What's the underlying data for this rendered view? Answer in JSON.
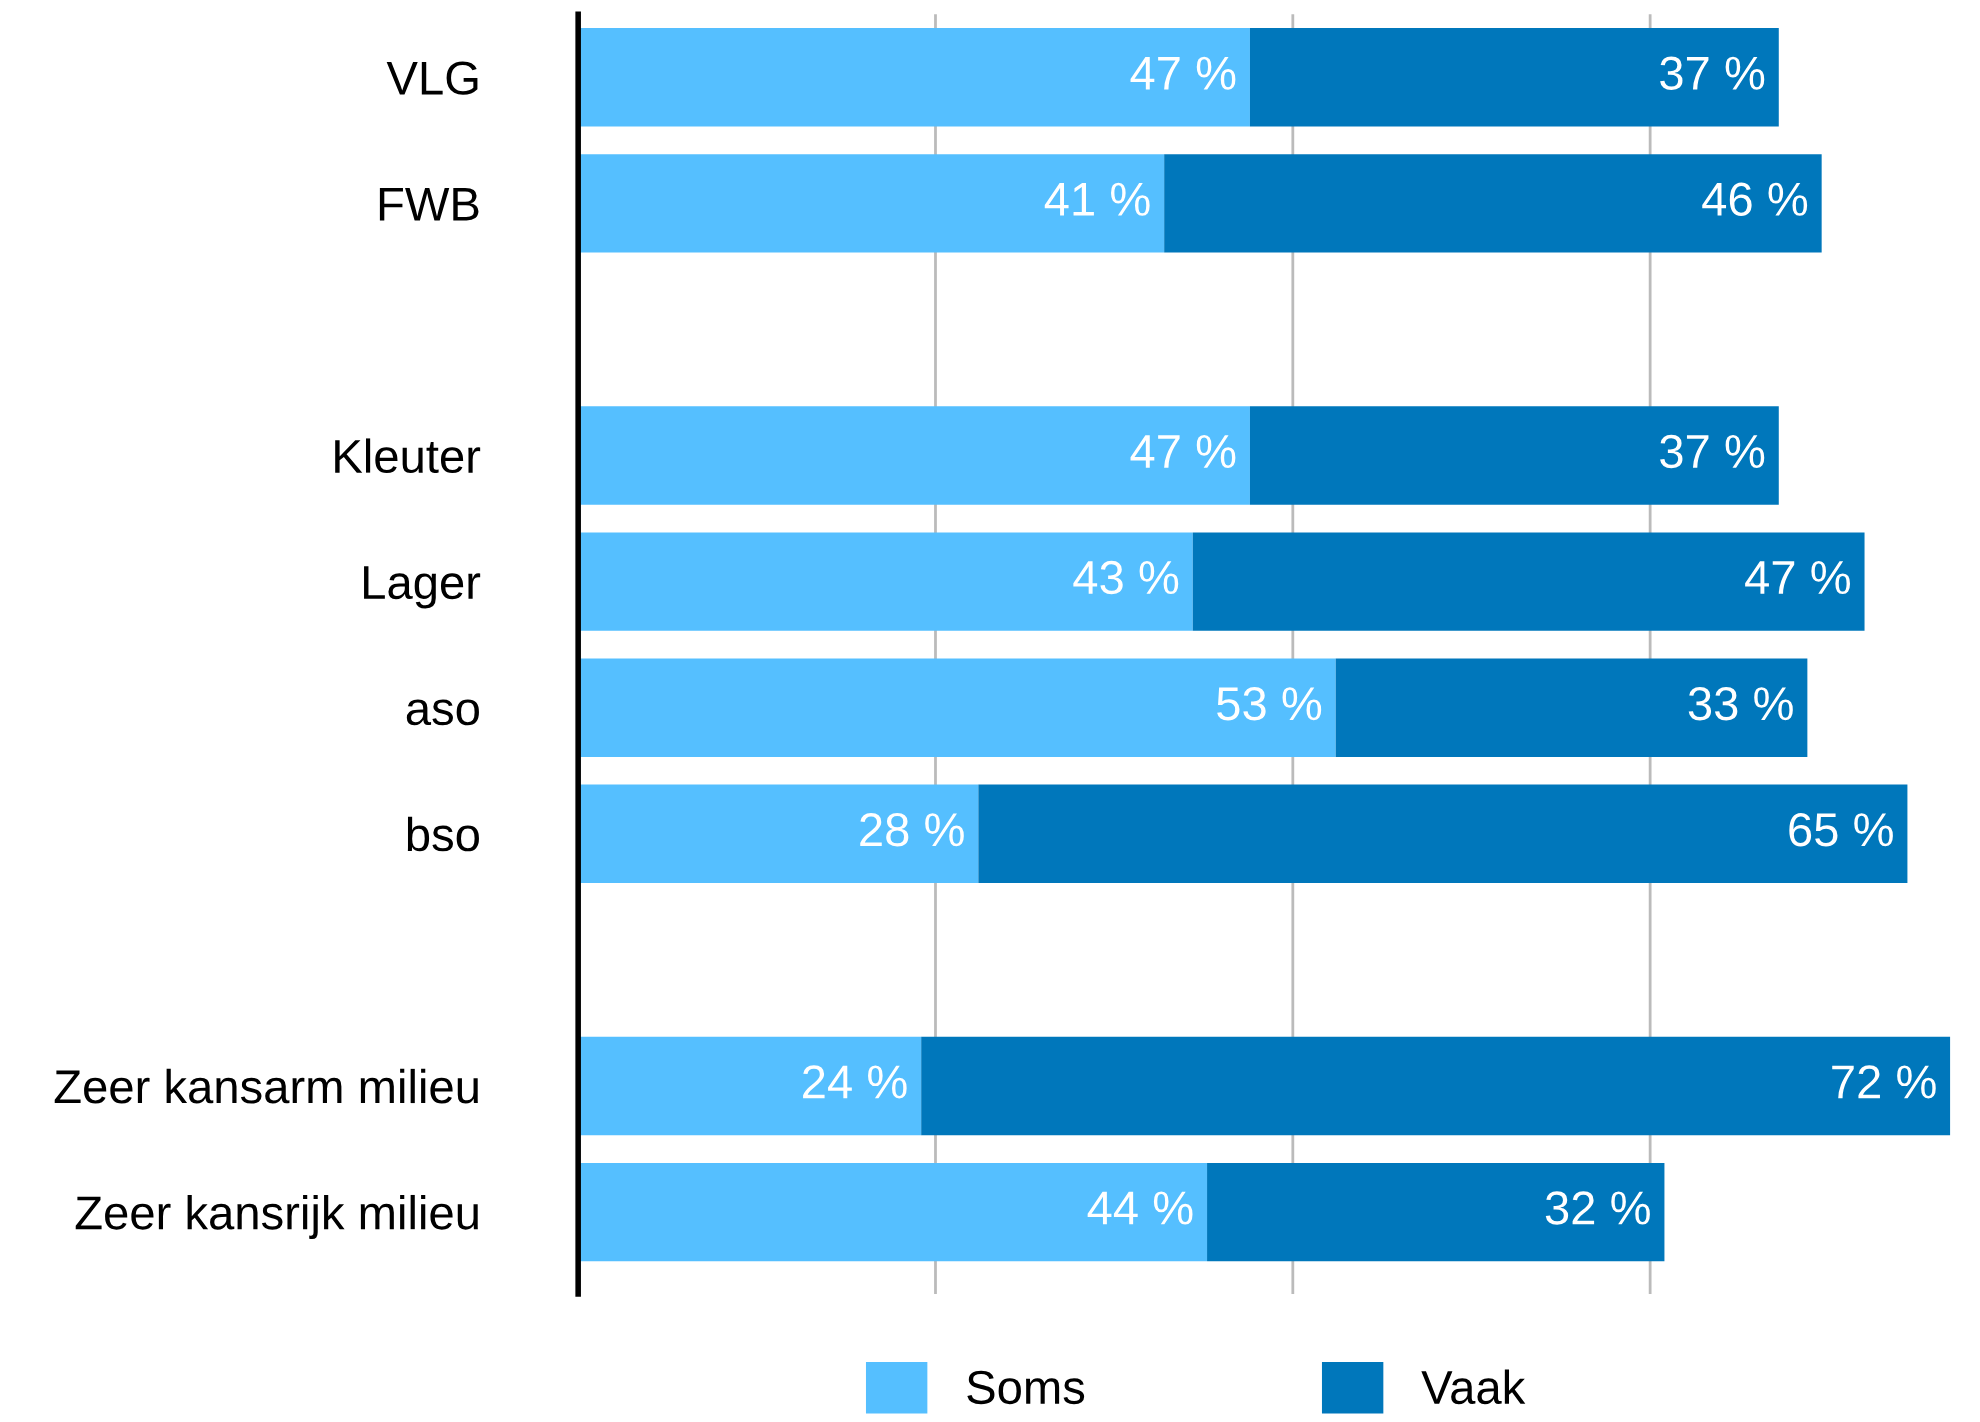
{
  "chart_data": {
    "type": "bar",
    "orientation": "horizontal",
    "stacked": true,
    "categories": [
      "VLG",
      "FWB",
      null,
      "Kleuter",
      "Lager",
      "aso",
      "bso",
      null,
      "Zeer kansarm milieu",
      "Zeer kansrijk milieu"
    ],
    "series": [
      {
        "name": "Soms",
        "color": "#55bfff",
        "values": [
          47,
          41,
          null,
          47,
          43,
          53,
          28,
          null,
          24,
          44
        ],
        "value_labels": [
          "47 %",
          "41 %",
          null,
          "47 %",
          "43 %",
          "53 %",
          "28 %",
          null,
          "24 %",
          "44 %"
        ]
      },
      {
        "name": "Vaak",
        "color": "#0077bb",
        "values": [
          37,
          46,
          null,
          37,
          47,
          33,
          65,
          null,
          72,
          32
        ],
        "value_labels": [
          "37 %",
          "46 %",
          null,
          "37 %",
          "47 %",
          "33 %",
          "65 %",
          null,
          "72 %",
          "32 %"
        ]
      }
    ],
    "xlim": [
      0,
      96
    ],
    "xticks": [
      {
        "value": 0,
        "label": null
      },
      {
        "value": 25,
        "label": null
      },
      {
        "value": 50,
        "label": null
      },
      {
        "value": 75,
        "label": null
      }
    ],
    "tick_labels": "y",
    "grid": "x",
    "legend": "bottom"
  }
}
